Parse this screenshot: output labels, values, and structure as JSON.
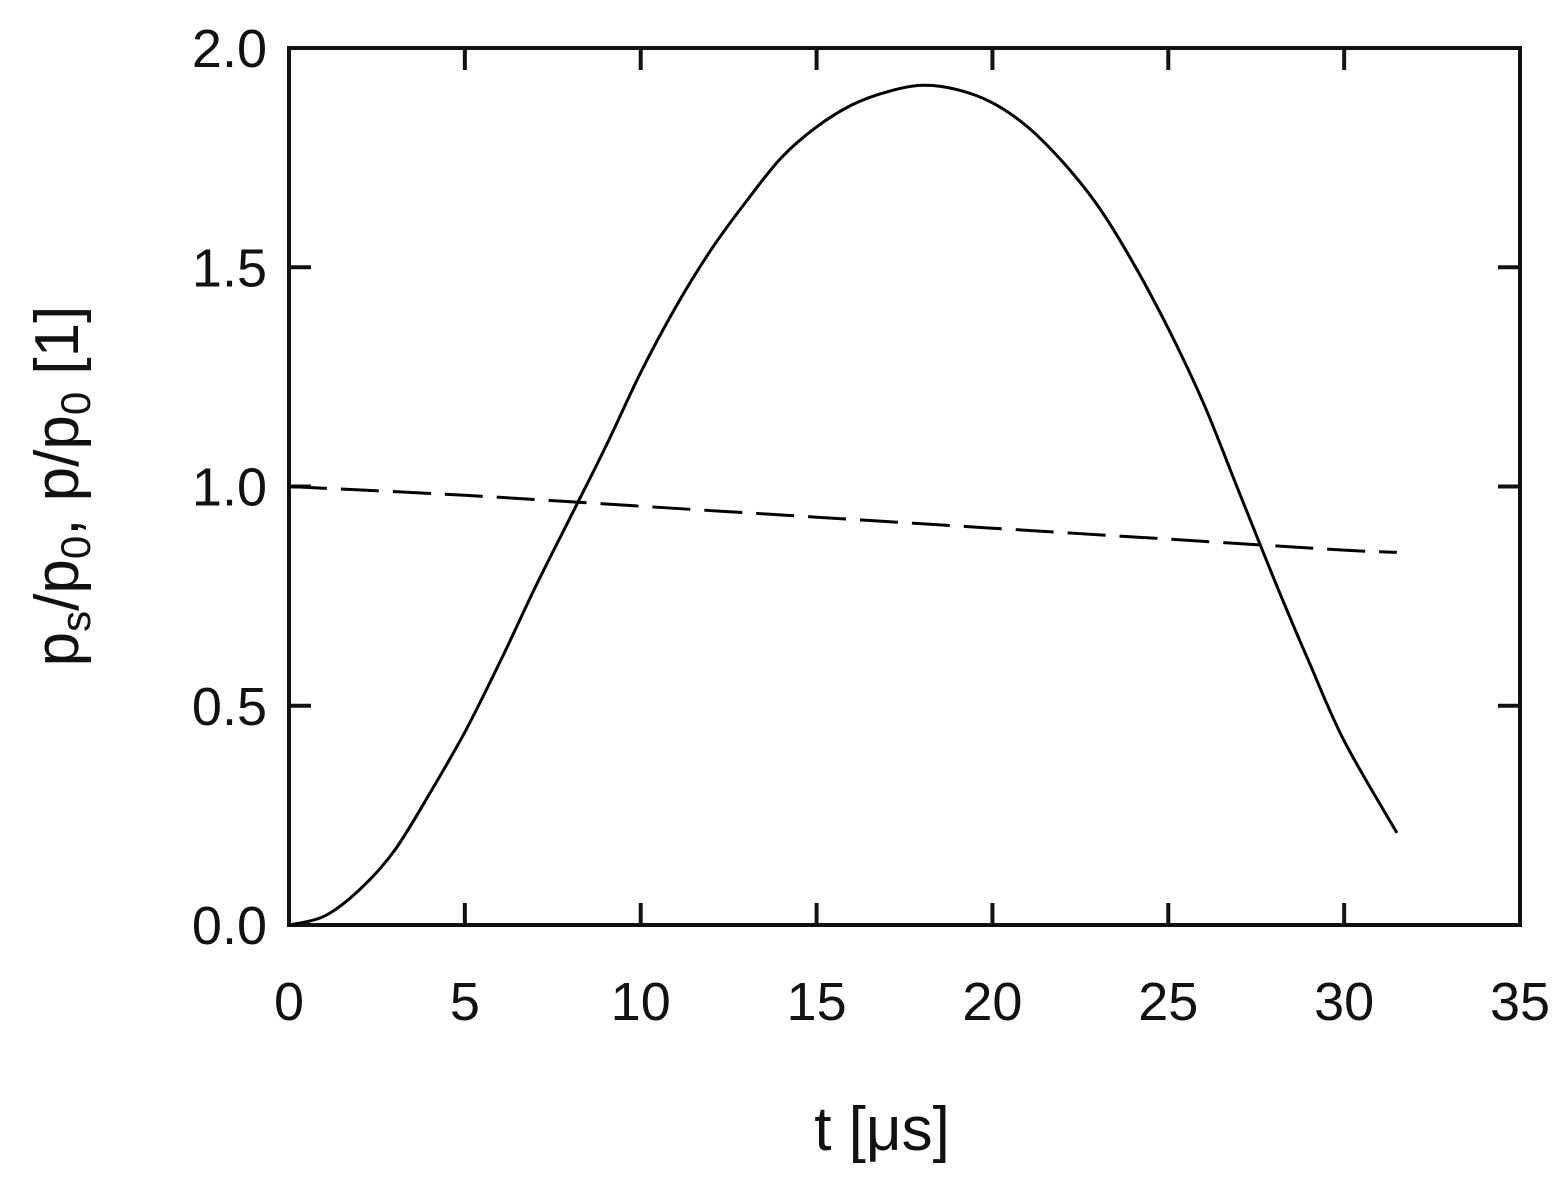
{
  "chart_data": {
    "type": "line",
    "title": "",
    "xlabel": "t [μs]",
    "ylabel_parts": [
      {
        "text": "p",
        "sub": false
      },
      {
        "text": "s",
        "sub": true
      },
      {
        "text": "/p",
        "sub": false
      },
      {
        "text": "0",
        "sub": true
      },
      {
        "text": ", p/p",
        "sub": false
      },
      {
        "text": "0",
        "sub": true
      },
      {
        "text": " [1]",
        "sub": false
      }
    ],
    "xlim": [
      0,
      35
    ],
    "ylim": [
      0,
      2.0
    ],
    "xticks": [
      0,
      5,
      10,
      15,
      20,
      25,
      30,
      35
    ],
    "xtick_labels": [
      "0",
      "5",
      "10",
      "15",
      "20",
      "25",
      "30",
      "35"
    ],
    "yticks": [
      0,
      0.5,
      1.0,
      1.5,
      2.0
    ],
    "ytick_labels": [
      "0.0",
      "0.5",
      "1.0",
      "1.5",
      "2.0"
    ],
    "grid": false,
    "legend": "none",
    "series": [
      {
        "style": "solid",
        "color": "#000000",
        "points": [
          [
            0,
            0.0
          ],
          [
            1,
            0.02
          ],
          [
            2,
            0.08
          ],
          [
            3,
            0.17
          ],
          [
            4,
            0.3
          ],
          [
            5,
            0.44
          ],
          [
            6,
            0.6
          ],
          [
            7,
            0.77
          ],
          [
            8,
            0.93
          ],
          [
            9,
            1.09
          ],
          [
            10,
            1.26
          ],
          [
            11,
            1.41
          ],
          [
            12,
            1.54
          ],
          [
            13,
            1.65
          ],
          [
            14,
            1.75
          ],
          [
            15,
            1.82
          ],
          [
            16,
            1.87
          ],
          [
            17,
            1.9
          ],
          [
            18,
            1.915
          ],
          [
            19,
            1.905
          ],
          [
            20,
            1.875
          ],
          [
            21,
            1.82
          ],
          [
            22,
            1.74
          ],
          [
            23,
            1.64
          ],
          [
            24,
            1.51
          ],
          [
            25,
            1.36
          ],
          [
            26,
            1.19
          ],
          [
            27,
            0.99
          ],
          [
            28,
            0.79
          ],
          [
            29,
            0.6
          ],
          [
            30,
            0.42
          ],
          [
            31.5,
            0.21
          ]
        ]
      },
      {
        "style": "dashed",
        "color": "#000000",
        "points": [
          [
            0,
            1.0
          ],
          [
            5,
            0.98
          ],
          [
            10,
            0.955
          ],
          [
            15,
            0.93
          ],
          [
            20,
            0.905
          ],
          [
            25,
            0.88
          ],
          [
            30,
            0.855
          ],
          [
            31.5,
            0.85
          ]
        ]
      }
    ]
  }
}
